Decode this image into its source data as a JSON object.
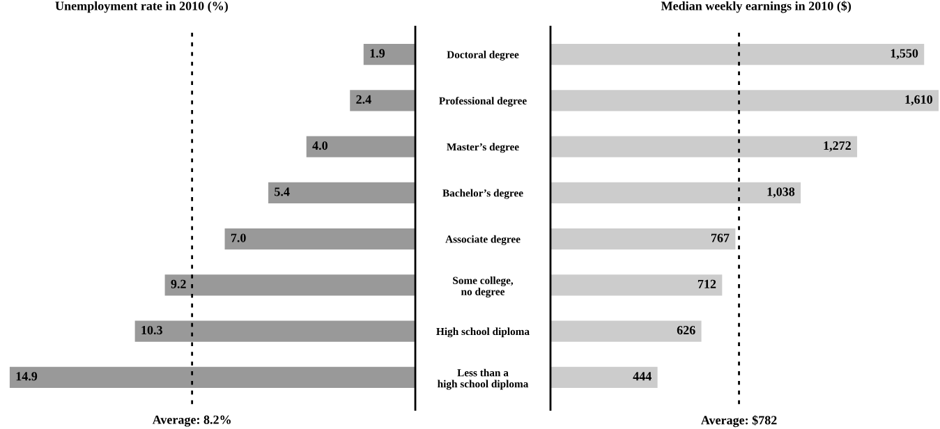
{
  "chart_data": [
    {
      "type": "bar",
      "orientation": "horizontal",
      "title": "Unemployment rate in 2010 (%)",
      "categories": [
        "Doctoral degree",
        "Professional degree",
        "Master’s degree",
        "Bachelor’s degree",
        "Associate degree",
        "Some college,\nno degree",
        "High school diploma",
        "Less than a\nhigh school diploma"
      ],
      "series": [
        {
          "color": "#999999",
          "values": [
            1.9,
            2.4,
            4.0,
            5.4,
            7.0,
            9.2,
            10.3,
            14.9
          ],
          "value_labels": [
            "1.9",
            "2.4",
            "4.0",
            "5.4",
            "7.0",
            "9.2",
            "10.3",
            "14.9"
          ]
        }
      ],
      "xlim": [
        15,
        0
      ],
      "tick_labels": "y",
      "ref_lines": [
        {
          "axis": "x",
          "value": 8.2,
          "label": "Average: 8.2%",
          "line_style": "dotted",
          "color": "#000000"
        }
      ]
    },
    {
      "type": "bar",
      "orientation": "horizontal",
      "title": "Median weekly earnings in 2010 ($)",
      "categories": [
        null,
        null,
        null,
        null,
        null,
        null,
        null,
        null
      ],
      "series": [
        {
          "color": "#cccccc",
          "values": [
            1550,
            1610,
            1272,
            1038,
            767,
            712,
            626,
            444
          ],
          "value_labels": [
            "1,550",
            "1,610",
            "1,272",
            "1,038",
            "767",
            "712",
            "626",
            "444"
          ]
        }
      ],
      "xlim": [
        0,
        1610
      ],
      "tick_labels": false,
      "ref_lines": [
        {
          "axis": "x",
          "value": 782,
          "label": "Average: $782",
          "line_style": "dotted",
          "color": "#000000"
        }
      ]
    }
  ]
}
